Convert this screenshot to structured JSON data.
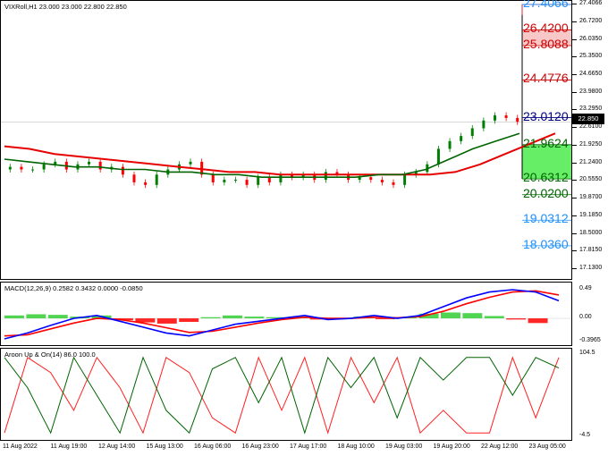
{
  "symbol_title": "VIXRoll,H1  23.000 23.000 22.800 22.850",
  "price_axis": [
    "27.4066",
    "26.7200",
    "26.0350",
    "25.3500",
    "24.6650",
    "23.9800",
    "23.2950",
    "22.6100",
    "21.9250",
    "21.2400",
    "20.5550",
    "19.8700",
    "19.1850",
    "18.5000",
    "17.8150",
    "17.1300"
  ],
  "current_price_tag": "22.850",
  "levels": [
    {
      "label": "27.4066",
      "color": "#1e90ff"
    },
    {
      "label": "26.4200",
      "color": "#cc0000"
    },
    {
      "label": "25.8088",
      "color": "#cc0000"
    },
    {
      "label": "24.4776",
      "color": "#cc0000"
    },
    {
      "label": "23.0120",
      "color": "#000080"
    },
    {
      "label": "21.9624",
      "color": "#006400"
    },
    {
      "label": "20.6312",
      "color": "#006400"
    },
    {
      "label": "20.0200",
      "color": "#006400"
    },
    {
      "label": "19.0312",
      "color": "#1e90ff"
    },
    {
      "label": "18.0360",
      "color": "#1e90ff"
    }
  ],
  "macd": {
    "title": "MACD(12,26,9) 0.2582 0.3432 0.0000 -0.0850",
    "axis": [
      "0.49",
      "0.00",
      "-0.3965"
    ]
  },
  "aroon": {
    "title": "Aroon Up & On(14) 86.0 100.0",
    "axis": [
      "104.5",
      "-4.5"
    ]
  },
  "time_axis": [
    "11 Aug 2022",
    "11 Aug 19:00",
    "12 Aug 14:00",
    "15 Aug 13:00",
    "16 Aug 06:00",
    "16 Aug 23:00",
    "17 Aug 17:00",
    "18 Aug 10:00",
    "19 Aug 03:00",
    "19 Aug 20:00",
    "22 Aug 12:00",
    "23 Aug 05:00"
  ],
  "colors": {
    "bull": "#008000",
    "bear": "#ff0000",
    "ma_fast": "#006400",
    "ma_slow": "#e60000",
    "macd_line": "#0000ff",
    "signal_line": "#ff0000",
    "hist_pos": "#33cc33",
    "hist_neg": "#ff0000"
  },
  "chart_data": [
    {
      "type": "line",
      "title": "VIXRoll,H1",
      "ylim": [
        17.13,
        27.4066
      ],
      "candles_close_estimate": [
        21.1,
        21.0,
        21.0,
        21.2,
        21.3,
        21.0,
        21.2,
        21.3,
        21.0,
        21.1,
        20.8,
        20.5,
        20.4,
        20.8,
        21.0,
        21.2,
        21.3,
        20.8,
        20.5,
        20.6,
        20.6,
        20.4,
        20.7,
        20.5,
        20.8,
        20.7,
        20.8,
        20.6,
        20.9,
        20.8,
        20.6,
        20.7,
        20.6,
        20.5,
        20.4,
        20.8,
        20.9,
        21.2,
        21.8,
        22.1,
        22.3,
        22.6,
        22.9,
        23.1,
        23.0,
        22.85
      ],
      "series": [
        {
          "name": "",
          "values": [
            21.4,
            21.3,
            21.2,
            21.1,
            21.1,
            21.0,
            21.0,
            20.9,
            20.9,
            20.8,
            20.8,
            20.7,
            20.7,
            20.7,
            20.7,
            20.7,
            20.8,
            20.8,
            21.0,
            21.4,
            21.8,
            22.1,
            22.4
          ]
        },
        {
          "name": "",
          "values": [
            21.9,
            21.8,
            21.6,
            21.5,
            21.4,
            21.3,
            21.2,
            21.1,
            21.0,
            20.9,
            20.9,
            20.8,
            20.8,
            20.8,
            20.8,
            20.8,
            20.8,
            20.8,
            20.9,
            21.2,
            21.6,
            22.0,
            22.4
          ]
        }
      ]
    },
    {
      "type": "line",
      "title": "MACD(12,26,9)",
      "ylim": [
        -0.3965,
        0.49
      ],
      "series": [
        {
          "name": "",
          "values": [
            -0.35,
            -0.25,
            -0.12,
            0.0,
            0.05,
            -0.05,
            -0.15,
            -0.25,
            -0.3,
            -0.2,
            -0.1,
            -0.05,
            0.0,
            0.05,
            -0.02,
            0.0,
            0.05,
            0.0,
            0.05,
            0.2,
            0.35,
            0.45,
            0.49,
            0.45,
            0.3
          ]
        },
        {
          "name": "",
          "values": [
            -0.3,
            -0.28,
            -0.18,
            -0.08,
            0.0,
            -0.02,
            -0.08,
            -0.16,
            -0.24,
            -0.22,
            -0.15,
            -0.08,
            -0.02,
            0.02,
            0.0,
            0.0,
            0.02,
            0.01,
            0.03,
            0.12,
            0.25,
            0.36,
            0.45,
            0.47,
            0.4
          ]
        }
      ],
      "histogram": [
        0.05,
        0.07,
        0.06,
        0.03,
        0.05,
        -0.03,
        -0.07,
        -0.09,
        -0.06,
        0.02,
        0.05,
        0.03,
        0.02,
        0.03,
        -0.02,
        0.0,
        0.03,
        -0.01,
        0.02,
        0.08,
        0.1,
        0.09,
        0.04,
        -0.02,
        -0.08
      ]
    },
    {
      "type": "line",
      "title": "Aroon Up & On(14)",
      "ylim": [
        -4.5,
        104.5
      ],
      "series": [
        {
          "name": "",
          "values": [
            100,
            60,
            0,
            100,
            50,
            0,
            100,
            30,
            0,
            85,
            100,
            40,
            100,
            0,
            100,
            60,
            100,
            20,
            100,
            70,
            100,
            100,
            50,
            100,
            86
          ]
        },
        {
          "name": "",
          "values": [
            0,
            100,
            80,
            30,
            100,
            60,
            0,
            100,
            80,
            20,
            0,
            100,
            30,
            100,
            0,
            100,
            40,
            100,
            0,
            30,
            0,
            0,
            100,
            20,
            100
          ]
        }
      ]
    }
  ]
}
